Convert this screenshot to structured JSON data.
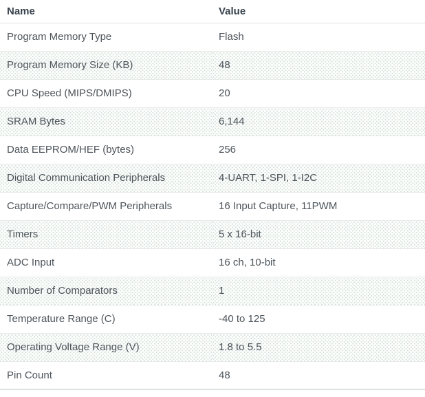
{
  "table": {
    "columns": [
      {
        "label": "Name"
      },
      {
        "label": "Value"
      }
    ],
    "rows": [
      {
        "name": "Program Memory Type",
        "value": "Flash"
      },
      {
        "name": "Program Memory Size (KB)",
        "value": "48"
      },
      {
        "name": "CPU Speed (MIPS/DMIPS)",
        "value": "20"
      },
      {
        "name": "SRAM Bytes",
        "value": "6,144"
      },
      {
        "name": "Data EEPROM/HEF (bytes)",
        "value": "256"
      },
      {
        "name": "Digital Communication Peripherals",
        "value": "4-UART, 1-SPI, 1-I2C"
      },
      {
        "name": "Capture/Compare/PWM Peripherals",
        "value": "16 Input Capture, 11PWM"
      },
      {
        "name": "Timers",
        "value": "5 x 16-bit"
      },
      {
        "name": "ADC Input",
        "value": "16 ch, 10-bit"
      },
      {
        "name": "Number of Comparators",
        "value": "1"
      },
      {
        "name": "Temperature Range (C)",
        "value": "-40 to 125"
      },
      {
        "name": "Operating Voltage Range (V)",
        "value": "1.8 to 5.5"
      },
      {
        "name": "Pin Count",
        "value": "48"
      }
    ],
    "colors": {
      "header_text": "#37424c",
      "row_text": "#4d545a",
      "stripe_dot": "#d7e2dc",
      "row_border": "#e7eae8",
      "bottom_border": "#d9e2df",
      "background": "#ffffff"
    }
  }
}
